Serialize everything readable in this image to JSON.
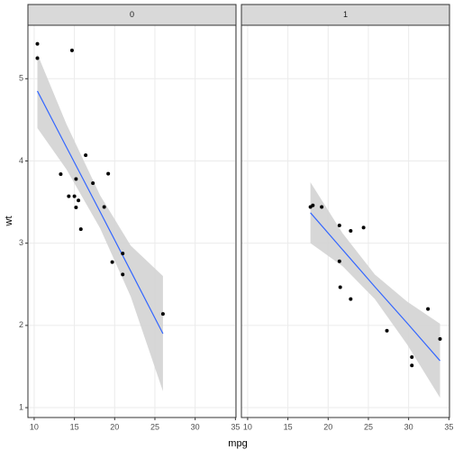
{
  "chart_data": {
    "type": "scatter",
    "x_label": "mpg",
    "y_label": "wt",
    "xlim": [
      9.225,
      35.075
    ],
    "ylim": [
      0.88,
      5.65
    ],
    "xticks": [
      10,
      15,
      20,
      25,
      30,
      35
    ],
    "yticks": [
      1,
      2,
      3,
      4,
      5
    ],
    "grid": true,
    "point_color": "#000000",
    "line_color": "#3366ff",
    "band_color": "#d3d3d3",
    "panels": [
      {
        "strip": "0",
        "x": [
          21.0,
          21.0,
          18.7,
          14.3,
          16.4,
          17.3,
          15.2,
          10.4,
          10.4,
          14.7,
          15.5,
          15.2,
          13.3,
          19.2,
          26.0,
          15.8,
          19.7,
          15.0
        ],
        "y": [
          2.62,
          2.875,
          3.44,
          3.57,
          4.07,
          3.73,
          3.78,
          5.25,
          5.424,
          5.345,
          3.52,
          3.435,
          3.84,
          3.845,
          2.14,
          3.17,
          2.77,
          3.57
        ],
        "smooth": {
          "x": [
            10.4,
            14,
            18.2,
            22,
            26
          ],
          "fit": [
            4.85,
            4.17,
            3.38,
            2.66,
            1.9
          ],
          "lower": [
            4.4,
            3.9,
            3.18,
            2.35,
            1.2
          ],
          "upper": [
            5.3,
            4.45,
            3.58,
            2.97,
            2.6
          ]
        }
      },
      {
        "strip": "1",
        "x": [
          22.8,
          21.4,
          18.1,
          24.4,
          22.8,
          19.2,
          17.8,
          32.4,
          30.4,
          33.9,
          21.5,
          27.3,
          30.4,
          21.4
        ],
        "y": [
          2.32,
          3.215,
          3.46,
          3.19,
          3.15,
          3.44,
          3.44,
          2.2,
          1.615,
          1.835,
          2.465,
          1.935,
          1.513,
          2.78
        ],
        "smooth": {
          "x": [
            17.8,
            21.8,
            25.8,
            29.8,
            33.9
          ],
          "fit": [
            3.37,
            2.92,
            2.47,
            2.03,
            1.57
          ],
          "lower": [
            3.0,
            2.72,
            2.32,
            1.77,
            1.12
          ],
          "upper": [
            3.74,
            3.12,
            2.62,
            2.29,
            2.02
          ]
        }
      }
    ]
  }
}
